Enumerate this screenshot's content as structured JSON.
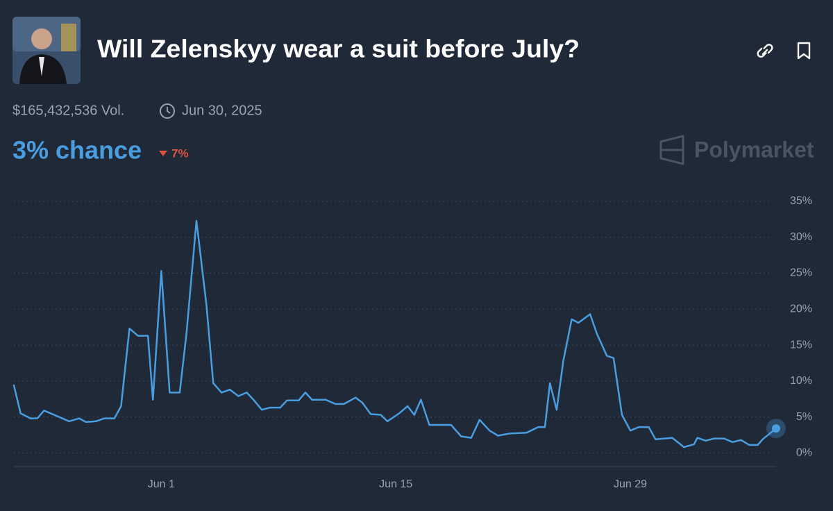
{
  "header": {
    "title": "Will Zelenskyy wear a suit before July?",
    "volume": "$165,432,536 Vol.",
    "end_date": "Jun 30, 2025",
    "chance": "3% chance",
    "change": "7%",
    "brand": "Polymarket"
  },
  "chart_data": {
    "type": "line",
    "x": [
      -8.8,
      -8.4,
      -7.8,
      -7.4,
      -7.0,
      -6.3,
      -5.5,
      -4.9,
      -4.5,
      -3.9,
      -3.4,
      -2.8,
      -2.4,
      -1.9,
      -1.4,
      -0.8,
      -0.5,
      0.0,
      0.5,
      1.1,
      1.5,
      2.1,
      2.7,
      3.1,
      3.6,
      4.1,
      4.6,
      5.1,
      5.5,
      6.0,
      6.5,
      7.1,
      7.5,
      8.2,
      8.6,
      9.0,
      9.8,
      10.4,
      10.9,
      11.6,
      12.0,
      12.5,
      13.1,
      13.5,
      14.2,
      14.7,
      15.1,
      15.5,
      16.0,
      17.3,
      17.9,
      18.5,
      19.0,
      19.6,
      20.1,
      20.8,
      21.8,
      22.5,
      22.9,
      23.2,
      23.6,
      24.0,
      24.5,
      24.9,
      25.6,
      26.0,
      26.6,
      27.0,
      27.5,
      28.0,
      28.5,
      29.1,
      29.5,
      30.5,
      31.2,
      31.8,
      32.0,
      32.5,
      33.0,
      33.6,
      34.1,
      34.6,
      35.1,
      35.6,
      35.9,
      36.7
    ],
    "series": [
      {
        "color": "#4a9ee0",
        "values": [
          9.4,
          5.5,
          4.8,
          4.8,
          5.9,
          5.2,
          4.4,
          4.8,
          4.3,
          4.4,
          4.8,
          4.8,
          6.5,
          17.3,
          16.3,
          16.3,
          7.4,
          25.3,
          8.4,
          8.4,
          16.6,
          32.3,
          20.5,
          9.7,
          8.4,
          8.8,
          7.9,
          8.4,
          7.4,
          6.0,
          6.3,
          6.3,
          7.3,
          7.3,
          8.4,
          7.4,
          7.4,
          6.8,
          6.8,
          7.7,
          7.0,
          5.4,
          5.3,
          4.4,
          5.5,
          6.5,
          5.3,
          7.4,
          3.9,
          3.9,
          2.3,
          2.1,
          4.6,
          3.1,
          2.4,
          2.7,
          2.8,
          3.6,
          3.6,
          9.7,
          6.0,
          12.8,
          18.6,
          18.1,
          19.3,
          16.6,
          13.5,
          13.2,
          5.3,
          3.1,
          3.6,
          3.6,
          1.9,
          2.1,
          0.8,
          1.2,
          2.1,
          1.7,
          2.0,
          2.0,
          1.5,
          1.8,
          1.1,
          1.1,
          1.9,
          3.4
        ]
      }
    ],
    "xlim": [
      -8.8,
      36.7
    ],
    "xticks": [
      {
        "value": 0,
        "label": "Jun 1"
      },
      {
        "value": 14,
        "label": "Jun 15"
      },
      {
        "value": 28,
        "label": "Jun 29"
      }
    ],
    "ylim": [
      -1.9,
      35
    ],
    "yticks": [
      {
        "value": 0,
        "label": "0%"
      },
      {
        "value": 5,
        "label": "5%"
      },
      {
        "value": 10,
        "label": "10%"
      },
      {
        "value": 15,
        "label": "15%"
      },
      {
        "value": 20,
        "label": "20%"
      },
      {
        "value": 25,
        "label": "25%"
      },
      {
        "value": 30,
        "label": "30%"
      },
      {
        "value": 35,
        "label": "35%"
      }
    ],
    "grid": true
  }
}
